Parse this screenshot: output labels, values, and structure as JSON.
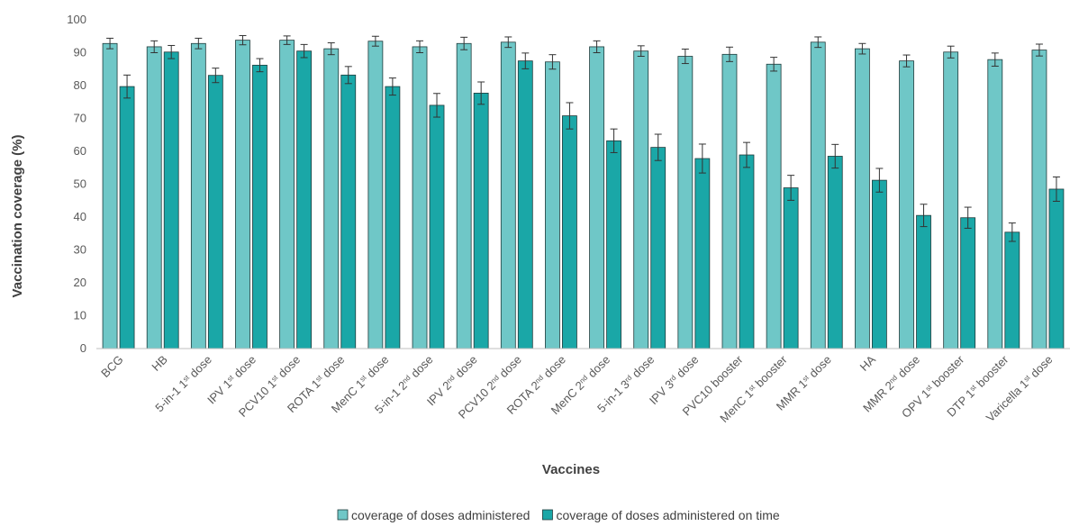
{
  "chart_data": {
    "type": "bar",
    "xlabel": "Vaccines",
    "ylabel": "Vaccination coverage (%)",
    "ylim": [
      0,
      100
    ],
    "yticks": [
      0,
      10,
      20,
      30,
      40,
      50,
      60,
      70,
      80,
      90,
      100
    ],
    "grid": false,
    "legend_position": "bottom",
    "categories": [
      {
        "base": "BCG",
        "sup": "",
        "suffix": ""
      },
      {
        "base": "HB",
        "sup": "",
        "suffix": ""
      },
      {
        "base": "5-in-1 1",
        "sup": "st",
        "suffix": " dose"
      },
      {
        "base": "IPV 1",
        "sup": "st",
        "suffix": " dose"
      },
      {
        "base": "PCV10 1",
        "sup": "st",
        "suffix": " dose"
      },
      {
        "base": "ROTA 1",
        "sup": "st",
        "suffix": " dose"
      },
      {
        "base": "MenC 1",
        "sup": "st",
        "suffix": " dose"
      },
      {
        "base": "5-in-1 2",
        "sup": "nd",
        "suffix": " dose"
      },
      {
        "base": "IPV 2",
        "sup": "nd",
        "suffix": " dose"
      },
      {
        "base": "PCV10 2",
        "sup": "nd",
        "suffix": " dose"
      },
      {
        "base": "ROTA 2",
        "sup": "nd",
        "suffix": " dose"
      },
      {
        "base": "MenC 2",
        "sup": "nd",
        "suffix": " dose"
      },
      {
        "base": "5-in-1 3",
        "sup": "rd",
        "suffix": " dose"
      },
      {
        "base": "IPV 3",
        "sup": "rd",
        "suffix": " dose"
      },
      {
        "base": "PVC10 booster",
        "sup": "",
        "suffix": ""
      },
      {
        "base": "MenC 1",
        "sup": "st",
        "suffix": " booster"
      },
      {
        "base": "MMR 1",
        "sup": "st",
        "suffix": " dose"
      },
      {
        "base": "HA",
        "sup": "",
        "suffix": ""
      },
      {
        "base": "MMR 2",
        "sup": "nd",
        "suffix": " dose"
      },
      {
        "base": "OPV 1",
        "sup": "st",
        "suffix": " booster"
      },
      {
        "base": "DTP 1",
        "sup": "st",
        "suffix": " booster"
      },
      {
        "base": "Varicella 1",
        "sup": "st",
        "suffix": " dose"
      }
    ],
    "series": [
      {
        "name": "coverage of doses administered",
        "color": "#6fc7c7",
        "values": [
          92.8,
          91.8,
          92.8,
          93.8,
          93.8,
          91.2,
          93.5,
          91.8,
          92.8,
          93.2,
          87.2,
          91.8,
          90.5,
          88.9,
          89.5,
          86.5,
          93.2,
          91.2,
          87.5,
          90.2,
          87.9,
          90.8
        ],
        "errors": [
          1.6,
          1.8,
          1.6,
          1.4,
          1.3,
          1.8,
          1.5,
          1.8,
          1.9,
          1.6,
          2.2,
          1.8,
          1.6,
          2.2,
          2.2,
          2.1,
          1.6,
          1.6,
          1.8,
          1.8,
          2.0,
          1.8
        ]
      },
      {
        "name": "coverage of doses administered on time",
        "color": "#1aa7a7",
        "values": [
          79.7,
          90.2,
          83.1,
          86.2,
          90.5,
          83.2,
          79.7,
          74.0,
          77.7,
          87.5,
          70.8,
          63.2,
          61.2,
          57.8,
          58.9,
          48.9,
          58.5,
          51.2,
          40.5,
          39.8,
          35.4,
          48.5
        ],
        "errors": [
          3.5,
          2.0,
          2.2,
          2.0,
          2.0,
          2.6,
          2.6,
          3.6,
          3.4,
          2.4,
          4.0,
          3.6,
          4.0,
          4.4,
          3.8,
          3.8,
          3.6,
          3.6,
          3.4,
          3.2,
          2.8,
          3.7
        ]
      }
    ]
  }
}
